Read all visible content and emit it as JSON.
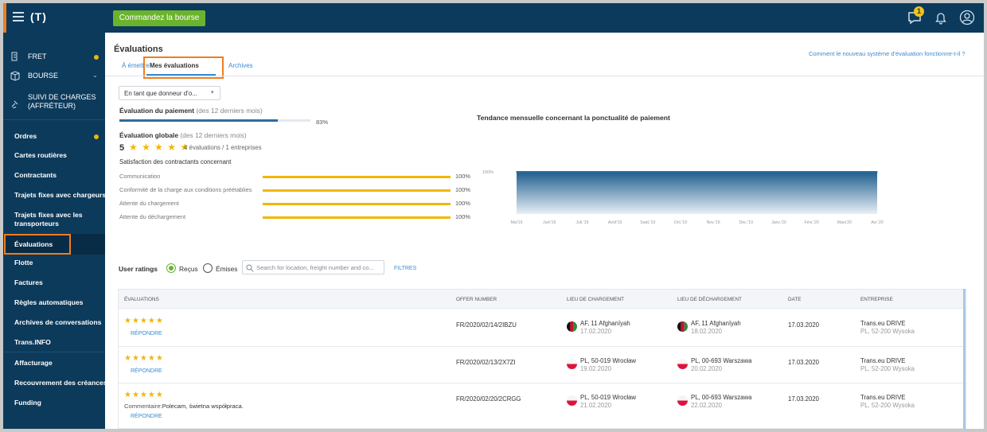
{
  "topbar": {
    "logo": "(T)",
    "cta_label": "Commandez la bourse",
    "notifications_badge": "1"
  },
  "sidebar": {
    "top_items": [
      {
        "label": "FRET",
        "icon": "truck-icon"
      },
      {
        "label": "BOURSE",
        "icon": "box-icon"
      },
      {
        "label": "SUIVI DE CHARGES (AFFRÉTEUR)",
        "icon": "satellite-icon"
      }
    ],
    "items": [
      {
        "label": "Ordres"
      },
      {
        "label": "Cartes routières"
      },
      {
        "label": "Contractants"
      },
      {
        "label": "Trajets fixes avec chargeurs"
      },
      {
        "label": "Trajets fixes avec les transporteurs"
      },
      {
        "label": "Évaluations"
      },
      {
        "label": "Flotte"
      },
      {
        "label": "Factures"
      },
      {
        "label": "Règles automatiques"
      },
      {
        "label": "Archives de conversations"
      },
      {
        "label": "Trans.INFO"
      },
      {
        "label": "Affacturage"
      },
      {
        "label": "Recouvrement des créances"
      },
      {
        "label": "Funding"
      }
    ]
  },
  "page": {
    "title": "Évaluations",
    "tabs": [
      {
        "label": "À émettre"
      },
      {
        "label": "Mes évaluations"
      },
      {
        "label": "Archives"
      }
    ],
    "help_link": "Comment le nouveau système d'évaluation fonctionne-t-il ?"
  },
  "summary": {
    "role_select": "En tant que donneur d'o...",
    "payment_title": "Évaluation du paiement",
    "payment_period": "(des 12 derniers mois)",
    "payment_pct": "83%",
    "payment_value": 0.83,
    "global_title": "Évaluation globale",
    "global_period": "(des 12 derniers mois)",
    "global_score": "5",
    "global_stars": "★ ★ ★ ★ ★",
    "global_count": "4 évaluations / 1 entreprises",
    "satisfaction_title": "Satisfaction des contractants concernant",
    "satisfaction": [
      {
        "label": "Communication",
        "pct": "100%"
      },
      {
        "label": "Conformité de la charge aux conditions préétablies",
        "pct": "100%"
      },
      {
        "label": "Attente du chargement",
        "pct": "100%"
      },
      {
        "label": "Attente du déchargement",
        "pct": "100%"
      }
    ]
  },
  "chart_data": {
    "type": "area",
    "title": "Tendance mensuelle concernant la ponctualité de paiement",
    "categories": [
      "Mai'19",
      "Juin'19",
      "Juil.'19",
      "Août'19",
      "Sept.'19",
      "Oct.'19",
      "Nov.'19",
      "Déc.'19",
      "Janv.'20",
      "Févr.'20",
      "Mars'20",
      "Avr.'20"
    ],
    "values": [
      100,
      100,
      100,
      100,
      100,
      100,
      100,
      100,
      100,
      100,
      100,
      100
    ],
    "y_tick": "100%",
    "ylim": [
      0,
      100
    ],
    "color": "#2d6d9e"
  },
  "ratings": {
    "label": "User ratings",
    "received_label": "Reçus",
    "issued_label": "Émises",
    "search_placeholder": "Search for location, freight number and co...",
    "filters_label": "FILTRES",
    "columns": [
      "ÉVALUATIONS",
      "OFFER NUMBER",
      "LIEU DE CHARGEMENT",
      "LIEU DE DÉCHARGEMENT",
      "DATE",
      "ENTREPRISE"
    ],
    "rows": [
      {
        "stars": "★★★★★",
        "comment_label": "",
        "comment": "",
        "reply": "RÉPONDRE",
        "offer": "FR/2020/02/14/2IBZU",
        "load_place": "AF, 11 Afghanīyah",
        "load_date": "17.02.2020",
        "unload_place": "AF, 11 Afghanīyah",
        "unload_date": "18.02.2020",
        "date": "17.03.2020",
        "company": "Trans.eu DRIVE",
        "company_addr": "PL, 52-200 Wysoka",
        "flag": "af"
      },
      {
        "stars": "★★★★★",
        "comment_label": "",
        "comment": "",
        "reply": "RÉPONDRE",
        "offer": "FR/2020/02/13/2X7ZI",
        "load_place": "PL, 50-019 Wrocław",
        "load_date": "19.02.2020",
        "unload_place": "PL, 00-693 Warszawa",
        "unload_date": "20.02.2020",
        "date": "17.03.2020",
        "company": "Trans.eu DRIVE",
        "company_addr": "PL, 52-200 Wysoka",
        "flag": "pl"
      },
      {
        "stars": "★★★★★",
        "comment_label": "Commentaire:",
        "comment": "Polecam, świetna współpraca.",
        "reply": "RÉPONDRE",
        "offer": "FR/2020/02/20/2CRGG",
        "load_place": "PL, 50-019 Wrocław",
        "load_date": "21.02.2020",
        "unload_place": "PL, 00-693 Warszawa",
        "unload_date": "22.02.2020",
        "date": "17.03.2020",
        "company": "Trans.eu DRIVE",
        "company_addr": "PL, 52-200 Wysoka",
        "flag": "pl"
      }
    ]
  }
}
